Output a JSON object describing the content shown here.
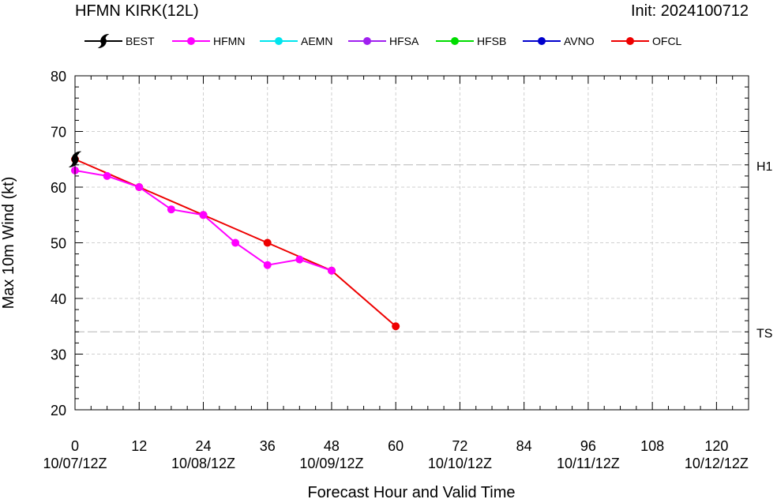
{
  "chart_data": {
    "type": "line",
    "title": "HFMN KIRK(12L)",
    "init_label": "Init: 2024100712",
    "xlabel": "Forecast Hour and Valid Time",
    "ylabel": "Max 10m Wind (kt)",
    "xlim": [
      0,
      126
    ],
    "ylim": [
      20,
      80
    ],
    "x_ticks": [
      0,
      12,
      24,
      36,
      48,
      60,
      72,
      84,
      96,
      108,
      120
    ],
    "valid_time_labels": [
      {
        "x": 0,
        "label": "10/07/12Z"
      },
      {
        "x": 24,
        "label": "10/08/12Z"
      },
      {
        "x": 48,
        "label": "10/09/12Z"
      },
      {
        "x": 72,
        "label": "10/10/12Z"
      },
      {
        "x": 96,
        "label": "10/11/12Z"
      },
      {
        "x": 120,
        "label": "10/12/12Z"
      }
    ],
    "y_ticks": [
      20,
      30,
      40,
      50,
      60,
      70,
      80
    ],
    "grid": true,
    "legend_position": "top",
    "reference_lines": [
      {
        "label": "H1",
        "y": 64
      },
      {
        "label": "TS",
        "y": 34
      }
    ],
    "series": [
      {
        "name": "BEST",
        "color": "#000000",
        "marker": "hurricane-symbol",
        "x": [
          0
        ],
        "y": [
          65
        ]
      },
      {
        "name": "HFMN",
        "color": "#ff00ff",
        "x": [
          0,
          6,
          12,
          18,
          24,
          30,
          36,
          42,
          48
        ],
        "y": [
          63,
          62,
          60,
          56,
          55,
          50,
          46,
          47,
          45
        ]
      },
      {
        "name": "AEMN",
        "color": "#00e5ee",
        "x": [],
        "y": []
      },
      {
        "name": "HFSA",
        "color": "#a020f0",
        "x": [],
        "y": []
      },
      {
        "name": "HFSB",
        "color": "#00dd00",
        "x": [],
        "y": []
      },
      {
        "name": "AVNO",
        "color": "#0000cd",
        "x": [],
        "y": []
      },
      {
        "name": "OFCL",
        "color": "#ee0000",
        "x": [
          0,
          12,
          24,
          36,
          48,
          60
        ],
        "y": [
          65,
          60,
          55,
          50,
          45,
          35
        ]
      }
    ]
  }
}
